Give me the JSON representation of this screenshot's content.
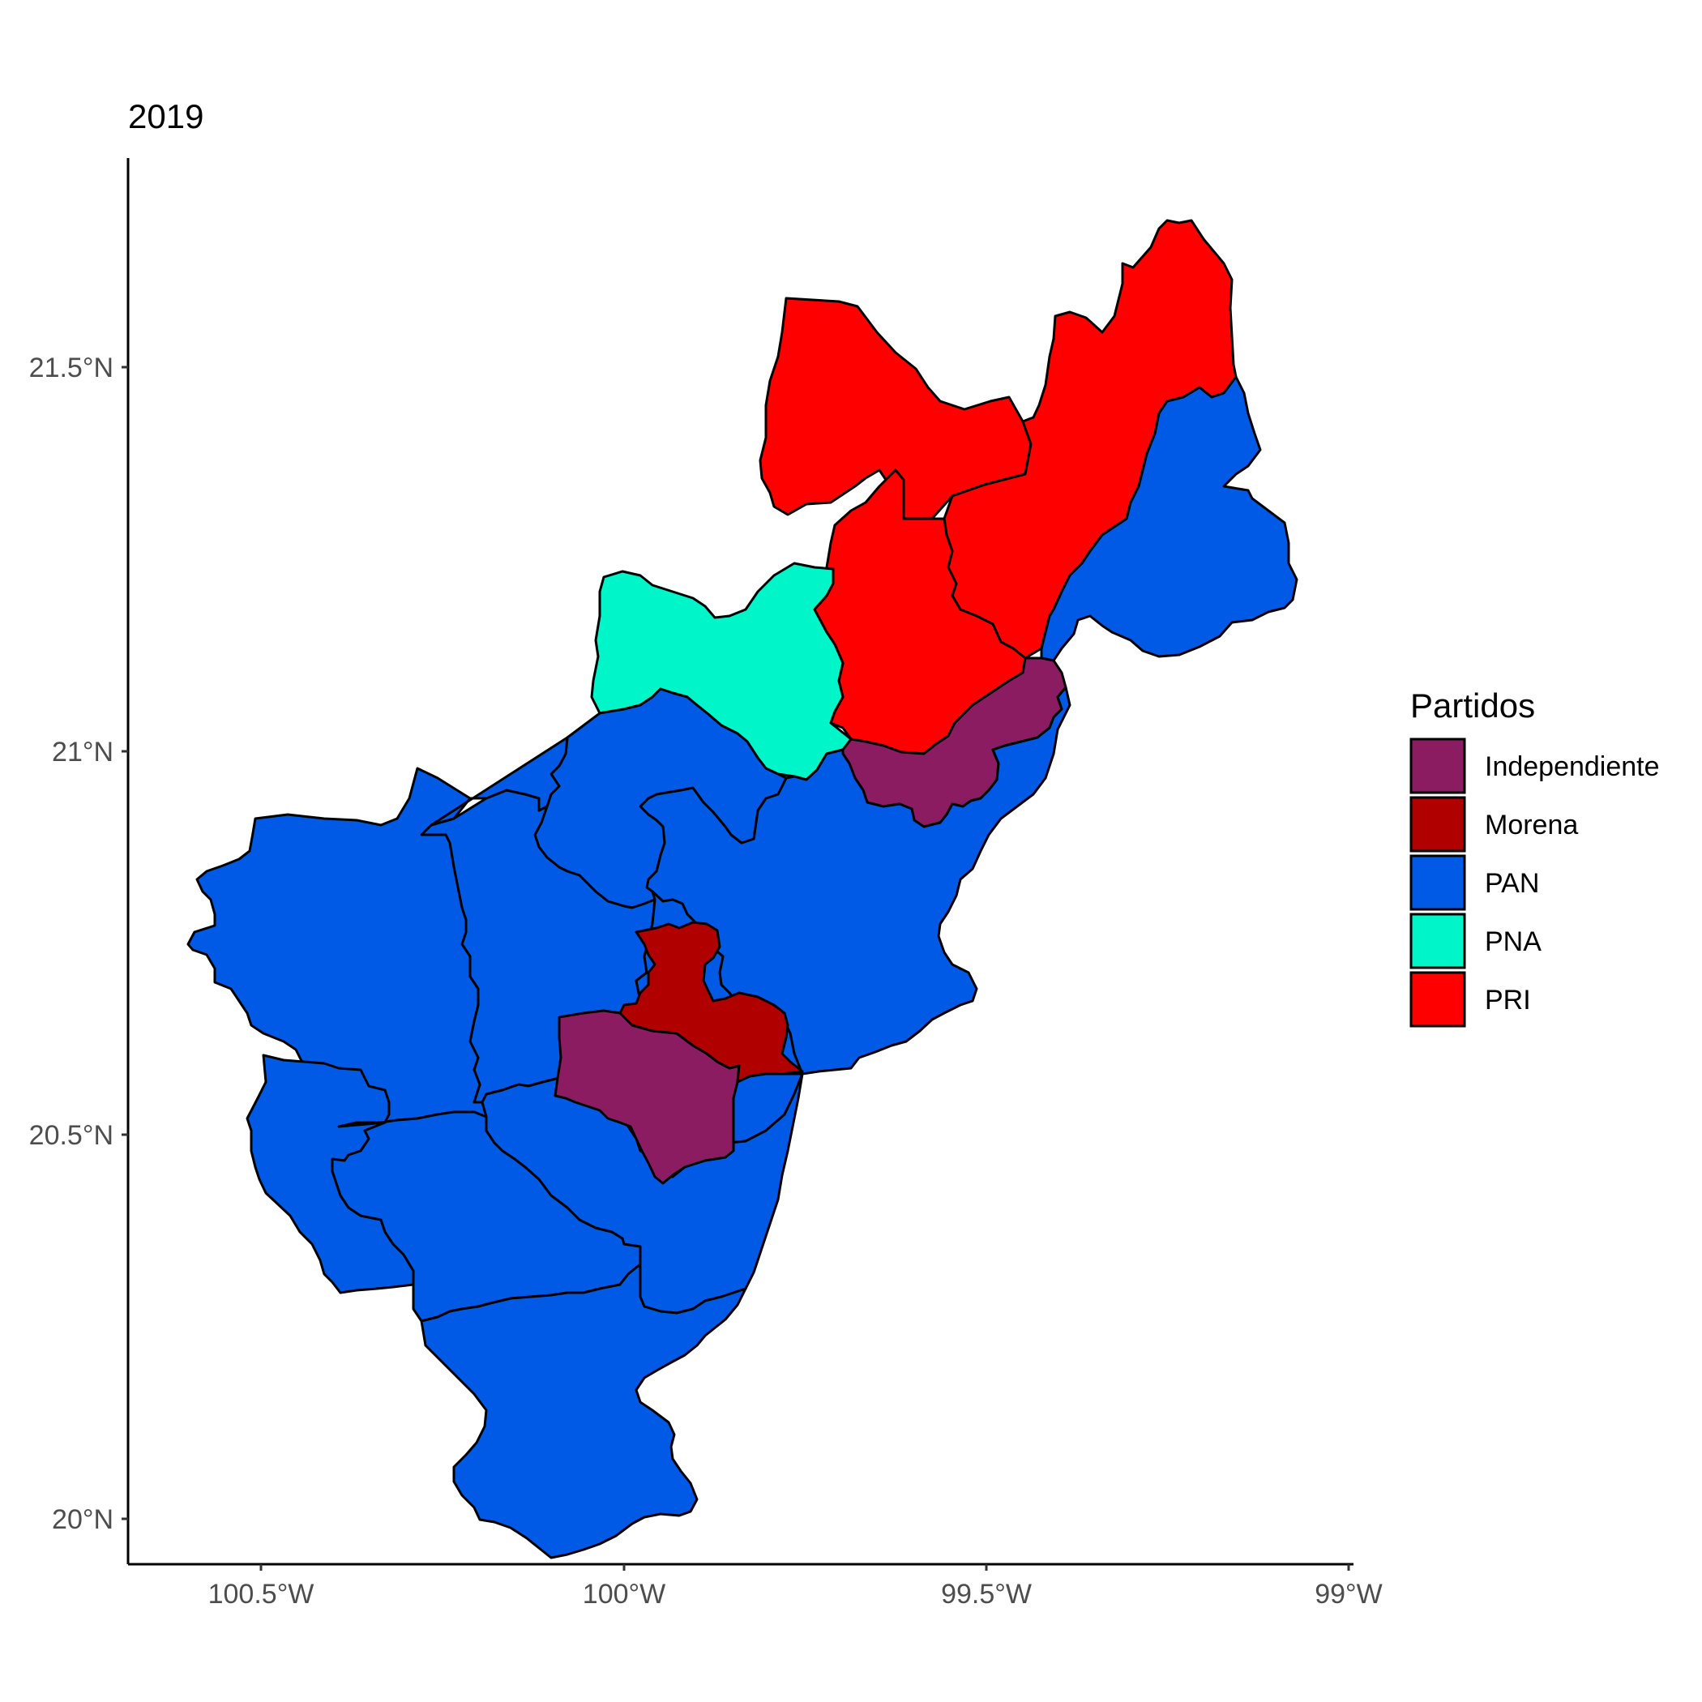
{
  "map": {
    "title": "2019",
    "legend_title": "Partidos"
  },
  "legend": [
    {
      "label": "Independiente",
      "color": "#8B1C62"
    },
    {
      "label": "Morena",
      "color": "#B00000"
    },
    {
      "label": "PAN",
      "color": "#005AE6"
    },
    {
      "label": "PNA",
      "color": "#00F5C8"
    },
    {
      "label": "PRI",
      "color": "#FF0000"
    }
  ],
  "axes": {
    "x_ticks": [
      "100.5°W",
      "100°W",
      "99.5°W",
      "99°W"
    ],
    "y_ticks": [
      "21.5°N",
      "21°N",
      "20.5°N",
      "20°N"
    ]
  },
  "regions": [
    {
      "name": "PRI norte",
      "party": "PRI"
    },
    {
      "name": "PRI noreste",
      "party": "PRI"
    },
    {
      "name": "PRI centro",
      "party": "PRI"
    },
    {
      "name": "PNA",
      "party": "PNA"
    },
    {
      "name": "PAN este",
      "party": "PAN"
    },
    {
      "name": "Independiente norte",
      "party": "Independiente"
    },
    {
      "name": "PAN centro",
      "party": "PAN"
    },
    {
      "name": "PAN centro-este",
      "party": "PAN"
    },
    {
      "name": "PAN oeste 1",
      "party": "PAN"
    },
    {
      "name": "PAN oeste 2",
      "party": "PAN"
    },
    {
      "name": "PAN oeste 3",
      "party": "PAN"
    },
    {
      "name": "PAN suroeste 1",
      "party": "PAN"
    },
    {
      "name": "PAN suroeste 2",
      "party": "PAN"
    },
    {
      "name": "PAN sur 1",
      "party": "PAN"
    },
    {
      "name": "PAN sur 2",
      "party": "PAN"
    },
    {
      "name": "PAN sur 3",
      "party": "PAN"
    },
    {
      "name": "Independiente sur",
      "party": "Independiente"
    },
    {
      "name": "Morena",
      "party": "Morena"
    }
  ]
}
